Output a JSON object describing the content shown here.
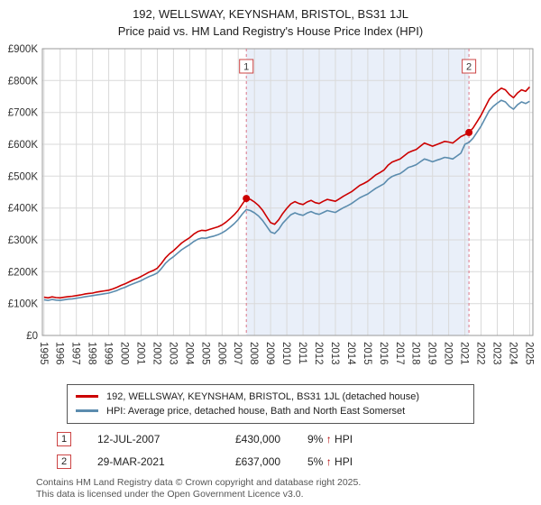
{
  "title": {
    "line1": "192, WELLSWAY, KEYNSHAM, BRISTOL, BS31 1JL",
    "line2": "Price paid vs. HM Land Registry's House Price Index (HPI)"
  },
  "chart_data": {
    "type": "line",
    "x_start": 1995,
    "x_step": 0.25,
    "xlim": [
      1994.9,
      2025.2
    ],
    "ylim": [
      0,
      900
    ],
    "grid": true,
    "legend_position": "bottom",
    "y_ticks": [
      "£0",
      "£100K",
      "£200K",
      "£300K",
      "£400K",
      "£500K",
      "£600K",
      "£700K",
      "£800K",
      "£900K"
    ],
    "x_ticks": [
      "1995",
      "1996",
      "1997",
      "1998",
      "1999",
      "2000",
      "2001",
      "2002",
      "2003",
      "2004",
      "2005",
      "2006",
      "2007",
      "2008",
      "2009",
      "2010",
      "2011",
      "2012",
      "2013",
      "2014",
      "2015",
      "2016",
      "2017",
      "2018",
      "2019",
      "2020",
      "2021",
      "2022",
      "2023",
      "2024",
      "2025"
    ],
    "series": [
      {
        "name": "192, WELLSWAY, KEYNSHAM, BRISTOL, BS31 1JL (detached house)",
        "color": "#cc0000",
        "values": [
          120,
          118,
          121,
          119,
          118,
          120,
          122,
          123,
          125,
          127,
          130,
          132,
          133,
          136,
          138,
          140,
          142,
          146,
          151,
          157,
          162,
          168,
          174,
          179,
          185,
          192,
          199,
          204,
          211,
          226,
          243,
          256,
          266,
          278,
          290,
          299,
          307,
          318,
          326,
          330,
          329,
          333,
          337,
          341,
          347,
          356,
          367,
          379,
          393,
          412,
          430,
          427,
          419,
          408,
          393,
          373,
          354,
          349,
          363,
          383,
          399,
          413,
          420,
          414,
          411,
          419,
          424,
          417,
          414,
          421,
          427,
          424,
          421,
          429,
          437,
          444,
          451,
          461,
          471,
          477,
          484,
          494,
          504,
          511,
          519,
          534,
          544,
          549,
          554,
          564,
          574,
          579,
          584,
          594,
          604,
          599,
          594,
          599,
          604,
          609,
          607,
          604,
          614,
          624,
          630,
          637,
          651,
          671,
          691,
          716,
          741,
          756,
          766,
          776,
          771,
          756,
          746,
          761,
          771,
          766,
          780
        ]
      },
      {
        "name": "HPI: Average price, detached house, Bath and North East Somerset",
        "color": "#5b8cae",
        "values": [
          112,
          110,
          113,
          111,
          110,
          112,
          114,
          115,
          117,
          119,
          121,
          123,
          125,
          127,
          129,
          131,
          133,
          137,
          141,
          147,
          151,
          157,
          162,
          167,
          172,
          179,
          185,
          190,
          196,
          210,
          226,
          238,
          247,
          258,
          269,
          277,
          285,
          295,
          302,
          306,
          305,
          309,
          312,
          316,
          322,
          330,
          340,
          351,
          364,
          381,
          395,
          392,
          385,
          375,
          361,
          343,
          325,
          320,
          333,
          352,
          366,
          379,
          385,
          380,
          377,
          384,
          389,
          383,
          380,
          386,
          392,
          389,
          386,
          394,
          401,
          407,
          414,
          423,
          432,
          438,
          444,
          453,
          462,
          469,
          476,
          490,
          499,
          504,
          508,
          517,
          527,
          531,
          536,
          545,
          554,
          550,
          545,
          550,
          554,
          559,
          557,
          554,
          563,
          572,
          600,
          606,
          619,
          638,
          657,
          681,
          705,
          719,
          729,
          738,
          733,
          719,
          710,
          724,
          733,
          728,
          735
        ]
      }
    ],
    "annotations": [
      {
        "label": "1",
        "x": 2007.5,
        "y": 430
      },
      {
        "label": "2",
        "x": 2021.25,
        "y": 637
      }
    ],
    "colors": {
      "shade": "#e9eff9",
      "dashed": "#dd7788",
      "grid": "#d9d9d9",
      "border": "#999999",
      "marker_border": "#cc4444"
    }
  },
  "legend": {
    "items": [
      {
        "label": "192, WELLSWAY, KEYNSHAM, BRISTOL, BS31 1JL (detached house)"
      },
      {
        "label": "HPI: Average price, detached house, Bath and North East Somerset"
      }
    ]
  },
  "sales": [
    {
      "num": "1",
      "date": "12-JUL-2007",
      "price": "£430,000",
      "change_pct": "9%",
      "change_arrow": "↑",
      "change_suffix": "HPI"
    },
    {
      "num": "2",
      "date": "29-MAR-2021",
      "price": "£637,000",
      "change_pct": "5%",
      "change_arrow": "↑",
      "change_suffix": "HPI"
    }
  ],
  "footer": {
    "line1": "Contains HM Land Registry data © Crown copyright and database right 2025.",
    "line2": "This data is licensed under the Open Government Licence v3.0."
  }
}
